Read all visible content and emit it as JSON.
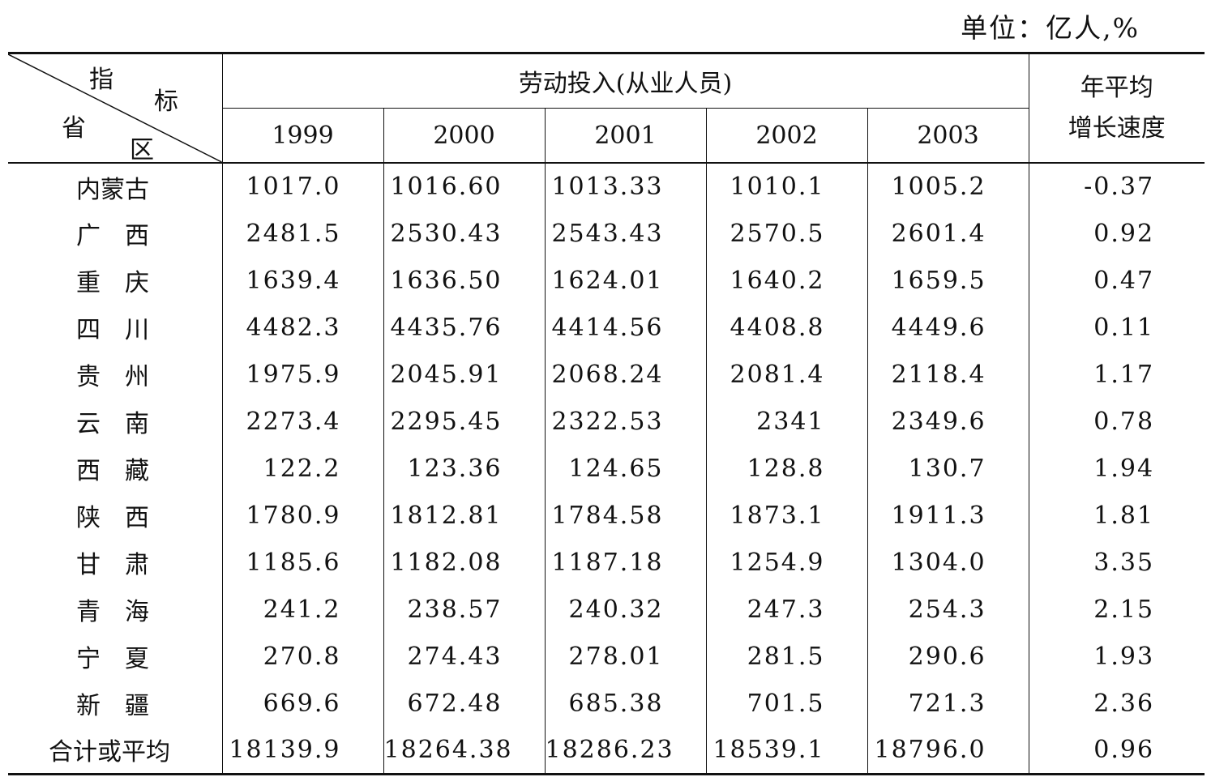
{
  "unit_label": "单位：亿人,%",
  "header": {
    "corner": {
      "top_line_1": "指",
      "top_line_2": "标",
      "bottom_line_1": "省",
      "bottom_line_2": "区"
    },
    "group_title": "劳动投入(从业人员)",
    "years": [
      "1999",
      "2000",
      "2001",
      "2002",
      "2003"
    ],
    "growth_title_line1": "年平均",
    "growth_title_line2": "增长速度"
  },
  "rows": [
    {
      "region": "内蒙古",
      "values": [
        "1017.0",
        "1016.60",
        "1013.33",
        "1010.1",
        "1005.2"
      ],
      "growth": "-0.37"
    },
    {
      "region": "广　西",
      "values": [
        "2481.5",
        "2530.43",
        "2543.43",
        "2570.5",
        "2601.4"
      ],
      "growth": "0.92"
    },
    {
      "region": "重　庆",
      "values": [
        "1639.4",
        "1636.50",
        "1624.01",
        "1640.2",
        "1659.5"
      ],
      "growth": "0.47"
    },
    {
      "region": "四　川",
      "values": [
        "4482.3",
        "4435.76",
        "4414.56",
        "4408.8",
        "4449.6"
      ],
      "growth": "0.11"
    },
    {
      "region": "贵　州",
      "values": [
        "1975.9",
        "2045.91",
        "2068.24",
        "2081.4",
        "2118.4"
      ],
      "growth": "1.17"
    },
    {
      "region": "云　南",
      "values": [
        "2273.4",
        "2295.45",
        "2322.53",
        "2341",
        "2349.6"
      ],
      "growth": "0.78"
    },
    {
      "region": "西　藏",
      "values": [
        "122.2",
        "123.36",
        "124.65",
        "128.8",
        "130.7"
      ],
      "growth": "1.94"
    },
    {
      "region": "陕　西",
      "values": [
        "1780.9",
        "1812.81",
        "1784.58",
        "1873.1",
        "1911.3"
      ],
      "growth": "1.81"
    },
    {
      "region": "甘　肃",
      "values": [
        "1185.6",
        "1182.08",
        "1187.18",
        "1254.9",
        "1304.0"
      ],
      "growth": "3.35"
    },
    {
      "region": "青　海",
      "values": [
        "241.2",
        "238.57",
        "240.32",
        "247.3",
        "254.3"
      ],
      "growth": "2.15"
    },
    {
      "region": "宁　夏",
      "values": [
        "270.8",
        "274.43",
        "278.01",
        "281.5",
        "290.6"
      ],
      "growth": "1.93"
    },
    {
      "region": "新　疆",
      "values": [
        "669.6",
        "672.48",
        "685.38",
        "701.5",
        "721.3"
      ],
      "growth": "2.36"
    },
    {
      "region": "合计或平均",
      "values": [
        "18139.9",
        "18264.38",
        "18286.23",
        "18539.1",
        "18796.0"
      ],
      "growth": "0.96"
    }
  ]
}
